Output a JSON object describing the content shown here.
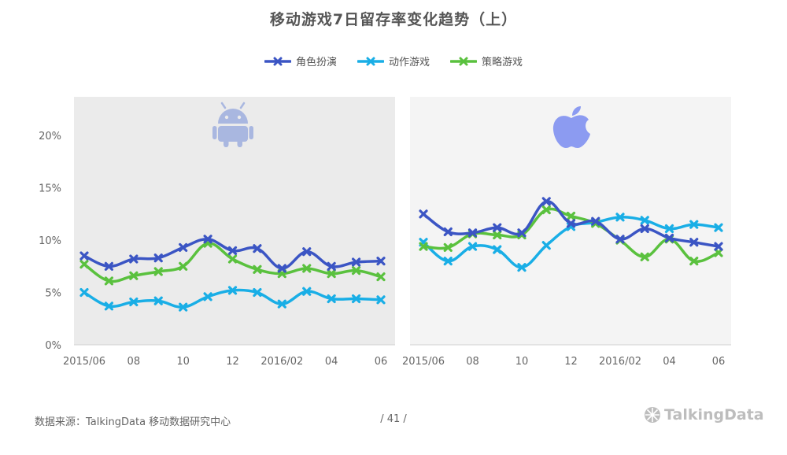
{
  "title": "移动游戏7日留存率变化趋势（上）",
  "footer": {
    "source": "数据来源：TalkingData 移动数据研究中心",
    "page": "/ 41 /",
    "logo": "TalkingData"
  },
  "colors": {
    "role_play": "#3b55c4",
    "action": "#19aee6",
    "strategy": "#5ac13e",
    "panel_android": "#ebebeb",
    "panel_ios": "#f4f4f4",
    "android_icon": "#a9b7e0",
    "apple_icon": "#8c9bf1"
  },
  "chart_data": {
    "type": "line",
    "y_tick_labels": [
      "0%",
      "5%",
      "10%",
      "15%",
      "20%"
    ],
    "ylim": [
      0,
      0.24
    ],
    "x_tick_labels": [
      "2015/06",
      "08",
      "10",
      "12",
      "2016/02",
      "04",
      "06"
    ],
    "x_tick_index": [
      0,
      2,
      4,
      6,
      8,
      10,
      12
    ],
    "legend": [
      "角色扮演",
      "动作游戏",
      "策略游戏"
    ],
    "legend_placement": "top-center",
    "grid": false,
    "panels": [
      {
        "platform": "android",
        "series": [
          {
            "name": "角色扮演",
            "values": [
              0.085,
              0.075,
              0.082,
              0.083,
              0.093,
              0.101,
              0.09,
              0.092,
              0.073,
              0.089,
              0.075,
              0.079,
              0.08
            ]
          },
          {
            "name": "动作游戏",
            "values": [
              0.05,
              0.037,
              0.041,
              0.042,
              0.036,
              0.046,
              0.052,
              0.05,
              0.039,
              0.051,
              0.044,
              0.044,
              0.043
            ]
          },
          {
            "name": "策略游戏",
            "values": [
              0.077,
              0.061,
              0.066,
              0.07,
              0.075,
              0.097,
              0.082,
              0.072,
              0.068,
              0.073,
              0.068,
              0.071,
              0.065
            ]
          }
        ]
      },
      {
        "platform": "ios",
        "series": [
          {
            "name": "角色扮演",
            "values": [
              0.125,
              0.108,
              0.107,
              0.112,
              0.107,
              0.137,
              0.116,
              0.118,
              0.101,
              0.111,
              0.102,
              0.098,
              0.094
            ]
          },
          {
            "name": "动作游戏",
            "values": [
              0.098,
              0.08,
              0.094,
              0.091,
              0.074,
              0.095,
              0.113,
              0.117,
              0.122,
              0.119,
              0.111,
              0.115,
              0.112
            ]
          },
          {
            "name": "策略游戏",
            "values": [
              0.094,
              0.093,
              0.106,
              0.105,
              0.105,
              0.129,
              0.123,
              0.116,
              0.1,
              0.084,
              0.101,
              0.08,
              0.088
            ]
          }
        ]
      }
    ]
  }
}
